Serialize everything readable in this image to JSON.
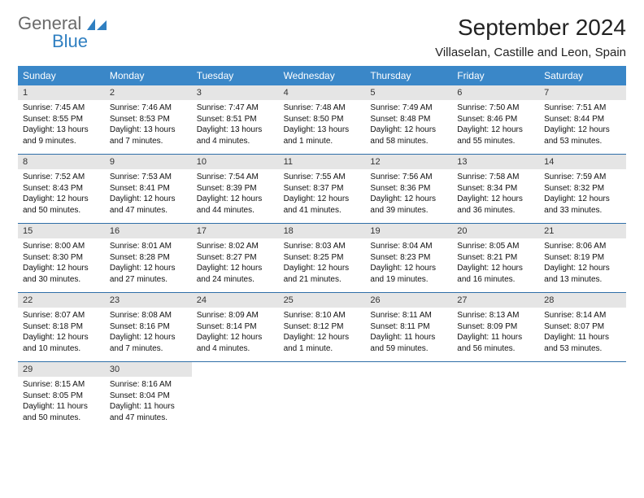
{
  "brand": {
    "general": "General",
    "blue": "Blue"
  },
  "title": "September 2024",
  "location": "Villaselan, Castille and Leon, Spain",
  "colors": {
    "header_bg": "#3a87c8",
    "daynum_bg": "#e5e5e5",
    "week_border": "#2f6fa8",
    "logo_gray": "#6a6a6a",
    "logo_blue": "#2f7fc1"
  },
  "typography": {
    "title_fontsize": 28,
    "location_fontsize": 15,
    "dow_fontsize": 12,
    "daynum_fontsize": 11,
    "body_fontsize": 10
  },
  "dow": [
    "Sunday",
    "Monday",
    "Tuesday",
    "Wednesday",
    "Thursday",
    "Friday",
    "Saturday"
  ],
  "weeks": [
    [
      {
        "n": "1",
        "sr": "Sunrise: 7:45 AM",
        "ss": "Sunset: 8:55 PM",
        "d1": "Daylight: 13 hours",
        "d2": "and 9 minutes."
      },
      {
        "n": "2",
        "sr": "Sunrise: 7:46 AM",
        "ss": "Sunset: 8:53 PM",
        "d1": "Daylight: 13 hours",
        "d2": "and 7 minutes."
      },
      {
        "n": "3",
        "sr": "Sunrise: 7:47 AM",
        "ss": "Sunset: 8:51 PM",
        "d1": "Daylight: 13 hours",
        "d2": "and 4 minutes."
      },
      {
        "n": "4",
        "sr": "Sunrise: 7:48 AM",
        "ss": "Sunset: 8:50 PM",
        "d1": "Daylight: 13 hours",
        "d2": "and 1 minute."
      },
      {
        "n": "5",
        "sr": "Sunrise: 7:49 AM",
        "ss": "Sunset: 8:48 PM",
        "d1": "Daylight: 12 hours",
        "d2": "and 58 minutes."
      },
      {
        "n": "6",
        "sr": "Sunrise: 7:50 AM",
        "ss": "Sunset: 8:46 PM",
        "d1": "Daylight: 12 hours",
        "d2": "and 55 minutes."
      },
      {
        "n": "7",
        "sr": "Sunrise: 7:51 AM",
        "ss": "Sunset: 8:44 PM",
        "d1": "Daylight: 12 hours",
        "d2": "and 53 minutes."
      }
    ],
    [
      {
        "n": "8",
        "sr": "Sunrise: 7:52 AM",
        "ss": "Sunset: 8:43 PM",
        "d1": "Daylight: 12 hours",
        "d2": "and 50 minutes."
      },
      {
        "n": "9",
        "sr": "Sunrise: 7:53 AM",
        "ss": "Sunset: 8:41 PM",
        "d1": "Daylight: 12 hours",
        "d2": "and 47 minutes."
      },
      {
        "n": "10",
        "sr": "Sunrise: 7:54 AM",
        "ss": "Sunset: 8:39 PM",
        "d1": "Daylight: 12 hours",
        "d2": "and 44 minutes."
      },
      {
        "n": "11",
        "sr": "Sunrise: 7:55 AM",
        "ss": "Sunset: 8:37 PM",
        "d1": "Daylight: 12 hours",
        "d2": "and 41 minutes."
      },
      {
        "n": "12",
        "sr": "Sunrise: 7:56 AM",
        "ss": "Sunset: 8:36 PM",
        "d1": "Daylight: 12 hours",
        "d2": "and 39 minutes."
      },
      {
        "n": "13",
        "sr": "Sunrise: 7:58 AM",
        "ss": "Sunset: 8:34 PM",
        "d1": "Daylight: 12 hours",
        "d2": "and 36 minutes."
      },
      {
        "n": "14",
        "sr": "Sunrise: 7:59 AM",
        "ss": "Sunset: 8:32 PM",
        "d1": "Daylight: 12 hours",
        "d2": "and 33 minutes."
      }
    ],
    [
      {
        "n": "15",
        "sr": "Sunrise: 8:00 AM",
        "ss": "Sunset: 8:30 PM",
        "d1": "Daylight: 12 hours",
        "d2": "and 30 minutes."
      },
      {
        "n": "16",
        "sr": "Sunrise: 8:01 AM",
        "ss": "Sunset: 8:28 PM",
        "d1": "Daylight: 12 hours",
        "d2": "and 27 minutes."
      },
      {
        "n": "17",
        "sr": "Sunrise: 8:02 AM",
        "ss": "Sunset: 8:27 PM",
        "d1": "Daylight: 12 hours",
        "d2": "and 24 minutes."
      },
      {
        "n": "18",
        "sr": "Sunrise: 8:03 AM",
        "ss": "Sunset: 8:25 PM",
        "d1": "Daylight: 12 hours",
        "d2": "and 21 minutes."
      },
      {
        "n": "19",
        "sr": "Sunrise: 8:04 AM",
        "ss": "Sunset: 8:23 PM",
        "d1": "Daylight: 12 hours",
        "d2": "and 19 minutes."
      },
      {
        "n": "20",
        "sr": "Sunrise: 8:05 AM",
        "ss": "Sunset: 8:21 PM",
        "d1": "Daylight: 12 hours",
        "d2": "and 16 minutes."
      },
      {
        "n": "21",
        "sr": "Sunrise: 8:06 AM",
        "ss": "Sunset: 8:19 PM",
        "d1": "Daylight: 12 hours",
        "d2": "and 13 minutes."
      }
    ],
    [
      {
        "n": "22",
        "sr": "Sunrise: 8:07 AM",
        "ss": "Sunset: 8:18 PM",
        "d1": "Daylight: 12 hours",
        "d2": "and 10 minutes."
      },
      {
        "n": "23",
        "sr": "Sunrise: 8:08 AM",
        "ss": "Sunset: 8:16 PM",
        "d1": "Daylight: 12 hours",
        "d2": "and 7 minutes."
      },
      {
        "n": "24",
        "sr": "Sunrise: 8:09 AM",
        "ss": "Sunset: 8:14 PM",
        "d1": "Daylight: 12 hours",
        "d2": "and 4 minutes."
      },
      {
        "n": "25",
        "sr": "Sunrise: 8:10 AM",
        "ss": "Sunset: 8:12 PM",
        "d1": "Daylight: 12 hours",
        "d2": "and 1 minute."
      },
      {
        "n": "26",
        "sr": "Sunrise: 8:11 AM",
        "ss": "Sunset: 8:11 PM",
        "d1": "Daylight: 11 hours",
        "d2": "and 59 minutes."
      },
      {
        "n": "27",
        "sr": "Sunrise: 8:13 AM",
        "ss": "Sunset: 8:09 PM",
        "d1": "Daylight: 11 hours",
        "d2": "and 56 minutes."
      },
      {
        "n": "28",
        "sr": "Sunrise: 8:14 AM",
        "ss": "Sunset: 8:07 PM",
        "d1": "Daylight: 11 hours",
        "d2": "and 53 minutes."
      }
    ],
    [
      {
        "n": "29",
        "sr": "Sunrise: 8:15 AM",
        "ss": "Sunset: 8:05 PM",
        "d1": "Daylight: 11 hours",
        "d2": "and 50 minutes."
      },
      {
        "n": "30",
        "sr": "Sunrise: 8:16 AM",
        "ss": "Sunset: 8:04 PM",
        "d1": "Daylight: 11 hours",
        "d2": "and 47 minutes."
      },
      {
        "empty": true
      },
      {
        "empty": true
      },
      {
        "empty": true
      },
      {
        "empty": true
      },
      {
        "empty": true
      }
    ]
  ]
}
